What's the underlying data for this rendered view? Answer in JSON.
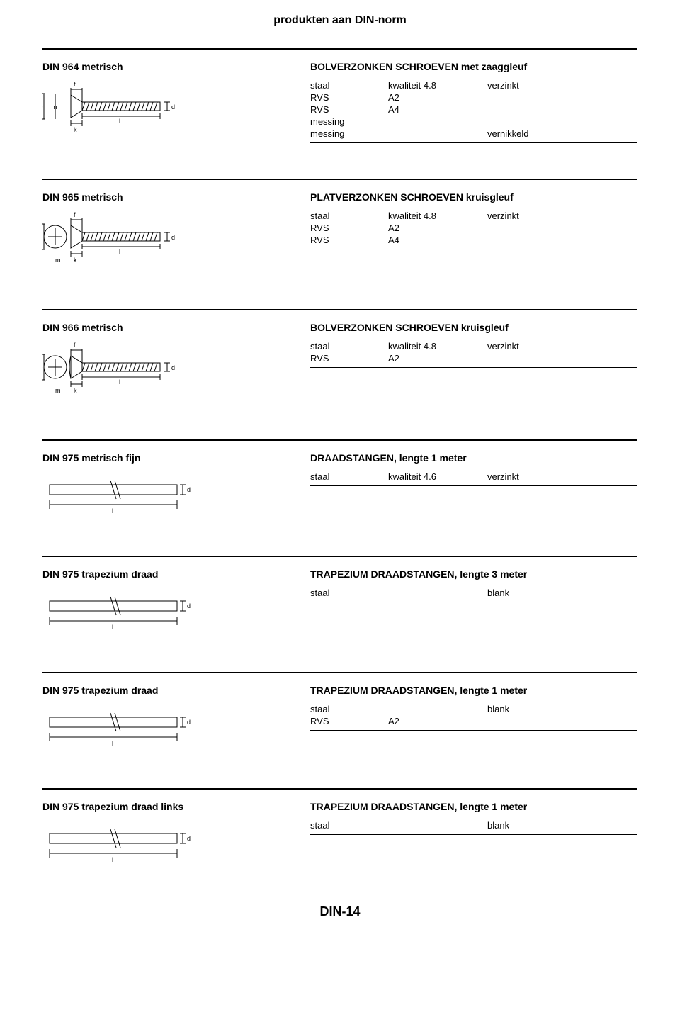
{
  "page_title": "produkten aan DIN-norm",
  "page_number": "DIN-14",
  "sections": [
    {
      "din": "DIN 964 metrisch",
      "title": "BOLVERZONKEN SCHROEVEN met zaaggleuf",
      "rows": [
        {
          "material": "staal",
          "quality": "kwaliteit 4.8",
          "finish": "verzinkt"
        },
        {
          "material": "RVS",
          "quality": "A2",
          "finish": ""
        },
        {
          "material": "RVS",
          "quality": "A4",
          "finish": ""
        },
        {
          "material": "messing",
          "quality": "",
          "finish": ""
        },
        {
          "material": "messing",
          "quality": "",
          "finish": "vernikkeld"
        }
      ],
      "drawing": "countersunk_slot"
    },
    {
      "din": "DIN 965 metrisch",
      "title": "PLATVERZONKEN SCHROEVEN kruisgleuf",
      "rows": [
        {
          "material": "staal",
          "quality": "kwaliteit 4.8",
          "finish": "verzinkt"
        },
        {
          "material": "RVS",
          "quality": "A2",
          "finish": ""
        },
        {
          "material": "RVS",
          "quality": "A4",
          "finish": ""
        }
      ],
      "drawing": "countersunk_cross"
    },
    {
      "din": "DIN 966 metrisch",
      "title": "BOLVERZONKEN SCHROEVEN kruisgleuf",
      "rows": [
        {
          "material": "staal",
          "quality": "kwaliteit 4.8",
          "finish": "verzinkt"
        },
        {
          "material": "RVS",
          "quality": "A2",
          "finish": ""
        }
      ],
      "drawing": "raised_cross"
    },
    {
      "din": "DIN 975 metrisch fijn",
      "title": "DRAADSTANGEN, lengte 1 meter",
      "rows": [
        {
          "material": "staal",
          "quality": "kwaliteit 4.6",
          "finish": "verzinkt"
        }
      ],
      "drawing": "rod"
    },
    {
      "din": "DIN 975 trapezium draad",
      "title": "TRAPEZIUM DRAADSTANGEN, lengte 3 meter",
      "rows": [
        {
          "material": "staal",
          "quality": "",
          "finish": "blank"
        }
      ],
      "drawing": "rod"
    },
    {
      "din": "DIN 975 trapezium draad",
      "title": "TRAPEZIUM DRAADSTANGEN, lengte 1 meter",
      "rows": [
        {
          "material": "staal",
          "quality": "",
          "finish": "blank"
        },
        {
          "material": "RVS",
          "quality": "A2",
          "finish": ""
        }
      ],
      "drawing": "rod"
    },
    {
      "din": "DIN 975 trapezium draad links",
      "title": "TRAPEZIUM DRAADSTANGEN, lengte 1 meter",
      "rows": [
        {
          "material": "staal",
          "quality": "",
          "finish": "blank"
        }
      ],
      "drawing": "rod"
    }
  ],
  "drawings": {
    "countersunk_slot": {
      "labels": [
        "D",
        "f",
        "n",
        "k",
        "l",
        "d"
      ]
    },
    "countersunk_cross": {
      "labels": [
        "D",
        "m",
        "k",
        "l",
        "d"
      ]
    },
    "raised_cross": {
      "labels": [
        "D",
        "m",
        "k",
        "l",
        "d"
      ]
    },
    "rod": {
      "labels": [
        "l",
        "d"
      ]
    }
  },
  "style": {
    "font_family": "Arial",
    "page_bg": "#ffffff",
    "text_color": "#000000",
    "rule_color": "#000000",
    "title_fontsize": 16,
    "body_fontsize": 14,
    "spec_fontsize": 13
  }
}
